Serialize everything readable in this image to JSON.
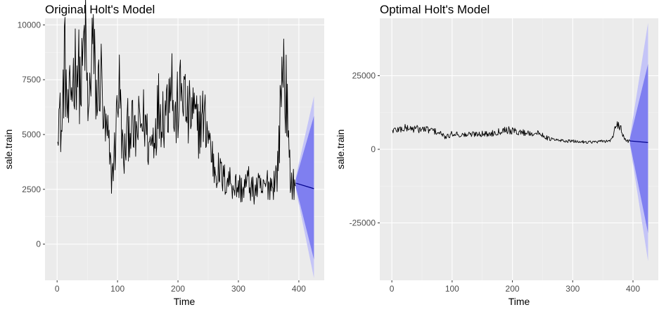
{
  "chart_data": [
    {
      "type": "line",
      "title": "Original Holt's Model",
      "xlabel": "Time",
      "ylabel": "sale.train",
      "xlim": [
        -20,
        442
      ],
      "ylim": [
        -1650,
        10300
      ],
      "xticks": [
        0,
        100,
        200,
        300,
        400
      ],
      "yticks": [
        0,
        2500,
        5000,
        7500,
        10000
      ],
      "grid": true,
      "series_color": "#000000",
      "forecast": {
        "start_x": 395,
        "end_x": 425,
        "point_start": 2780,
        "point_end": 2530,
        "point_color": "#00008B",
        "pi80_start": [
          2600,
          2960
        ],
        "pi80_end": [
          -700,
          5850
        ],
        "pi95_start": [
          2500,
          3060
        ],
        "pi95_end": [
          -1550,
          6750
        ],
        "pi80_color": "#7f7ff0",
        "pi95_color": "#c4c4f7"
      },
      "series_anchors": [
        [
          1,
          6400
        ],
        [
          8,
          5000
        ],
        [
          12,
          8700
        ],
        [
          18,
          5600
        ],
        [
          25,
          7400
        ],
        [
          32,
          8500
        ],
        [
          40,
          7000
        ],
        [
          46,
          9800
        ],
        [
          52,
          5500
        ],
        [
          58,
          9400
        ],
        [
          66,
          6400
        ],
        [
          72,
          8000
        ],
        [
          78,
          5200
        ],
        [
          84,
          4800
        ],
        [
          90,
          3000
        ],
        [
          96,
          4400
        ],
        [
          102,
          7600
        ],
        [
          110,
          3600
        ],
        [
          116,
          5100
        ],
        [
          122,
          5600
        ],
        [
          128,
          4700
        ],
        [
          136,
          5400
        ],
        [
          145,
          5700
        ],
        [
          152,
          4400
        ],
        [
          160,
          5000
        ],
        [
          168,
          6300
        ],
        [
          176,
          6000
        ],
        [
          184,
          6600
        ],
        [
          188,
          8600
        ],
        [
          194,
          5400
        ],
        [
          200,
          6300
        ],
        [
          208,
          7200
        ],
        [
          216,
          5700
        ],
        [
          224,
          6100
        ],
        [
          232,
          5300
        ],
        [
          240,
          5800
        ],
        [
          248,
          5400
        ],
        [
          254,
          4400
        ],
        [
          260,
          3500
        ],
        [
          268,
          3300
        ],
        [
          276,
          2900
        ],
        [
          284,
          3000
        ],
        [
          292,
          2700
        ],
        [
          300,
          2600
        ],
        [
          308,
          2500
        ],
        [
          316,
          2900
        ],
        [
          324,
          2400
        ],
        [
          332,
          2600
        ],
        [
          340,
          2400
        ],
        [
          348,
          2800
        ],
        [
          356,
          2700
        ],
        [
          364,
          3200
        ],
        [
          368,
          5000
        ],
        [
          371,
          7300
        ],
        [
          374,
          8500
        ],
        [
          377,
          7200
        ],
        [
          380,
          6600
        ],
        [
          383,
          4200
        ],
        [
          386,
          3000
        ],
        [
          390,
          2800
        ],
        [
          395,
          2780
        ]
      ]
    },
    {
      "type": "line",
      "title": "Optimal Holt's Model",
      "xlabel": "Time",
      "ylabel": "sale.train",
      "xlim": [
        -20,
        442
      ],
      "ylim": [
        -44500,
        44500
      ],
      "xticks": [
        0,
        100,
        200,
        300,
        400
      ],
      "yticks": [
        -25000,
        0,
        25000
      ],
      "grid": true,
      "series_color": "#000000",
      "forecast": {
        "start_x": 395,
        "end_x": 425,
        "point_start": 2850,
        "point_end": 2300,
        "point_color": "#00008B",
        "pi80_start": [
          2000,
          3700
        ],
        "pi80_end": [
          -28500,
          29000
        ],
        "pi95_start": [
          1500,
          4200
        ],
        "pi95_end": [
          -38000,
          43000
        ],
        "pi80_color": "#7f7ff0",
        "pi95_color": "#c4c4f7"
      },
      "series_anchors": [
        [
          1,
          6400
        ],
        [
          12,
          6800
        ],
        [
          25,
          7200
        ],
        [
          40,
          6900
        ],
        [
          52,
          6800
        ],
        [
          66,
          6500
        ],
        [
          78,
          5600
        ],
        [
          90,
          4000
        ],
        [
          102,
          5500
        ],
        [
          116,
          4800
        ],
        [
          128,
          5000
        ],
        [
          145,
          5400
        ],
        [
          160,
          5100
        ],
        [
          176,
          6000
        ],
        [
          188,
          6800
        ],
        [
          200,
          6200
        ],
        [
          216,
          5700
        ],
        [
          232,
          5500
        ],
        [
          248,
          5200
        ],
        [
          260,
          3600
        ],
        [
          276,
          3000
        ],
        [
          292,
          2800
        ],
        [
          308,
          2600
        ],
        [
          324,
          2500
        ],
        [
          340,
          2500
        ],
        [
          356,
          2800
        ],
        [
          364,
          3200
        ],
        [
          370,
          6500
        ],
        [
          375,
          8300
        ],
        [
          380,
          7000
        ],
        [
          385,
          3600
        ],
        [
          390,
          2800
        ],
        [
          395,
          2850
        ]
      ]
    }
  ]
}
